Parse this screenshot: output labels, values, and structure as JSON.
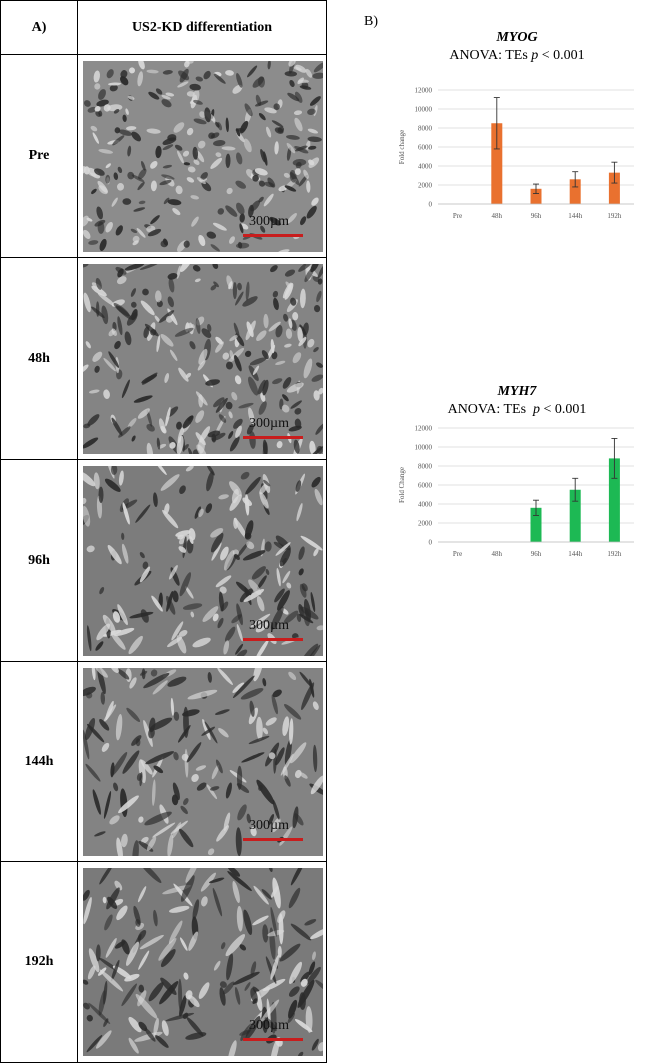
{
  "panel_a": {
    "label": "A)",
    "column_header": "US2-KD differentiation",
    "scale_bar_text": "300µm",
    "scale_bar_color": "#c81d1d",
    "rows": [
      {
        "label": "Pre"
      },
      {
        "label": "48h"
      },
      {
        "label": "96h"
      },
      {
        "label": "144h"
      },
      {
        "label": "192h"
      }
    ]
  },
  "panel_b": {
    "label": "B)"
  },
  "chart_data": [
    {
      "type": "bar",
      "gene": "MYOG",
      "subtitle_prefix": "ANOVA: TEs ",
      "subtitle_p": "p",
      "subtitle_suffix": " < 0.001",
      "ylabel": "Fold change",
      "xlabel": "",
      "categories": [
        "Pre",
        "48h",
        "96h",
        "144h",
        "192h"
      ],
      "values": [
        0,
        8500,
        1600,
        2600,
        3300
      ],
      "errors": [
        0,
        2700,
        500,
        800,
        1100
      ],
      "ylim": [
        0,
        12000
      ],
      "yticks": [
        0,
        2000,
        4000,
        6000,
        8000,
        10000,
        12000
      ],
      "color": "#e9712f",
      "grid": true
    },
    {
      "type": "bar",
      "gene": "MYH7",
      "subtitle_prefix": "ANOVA: TEs  ",
      "subtitle_p": "p",
      "subtitle_suffix": " < 0.001",
      "ylabel": "Fold Change",
      "xlabel": "",
      "categories": [
        "Pre",
        "48h",
        "96h",
        "144h",
        "192h"
      ],
      "values": [
        0,
        0,
        3600,
        5500,
        8800
      ],
      "errors": [
        0,
        0,
        800,
        1200,
        2100
      ],
      "ylim": [
        0,
        12000
      ],
      "yticks": [
        0,
        2000,
        4000,
        6000,
        8000,
        10000,
        12000
      ],
      "color": "#1db954",
      "grid": true
    }
  ]
}
